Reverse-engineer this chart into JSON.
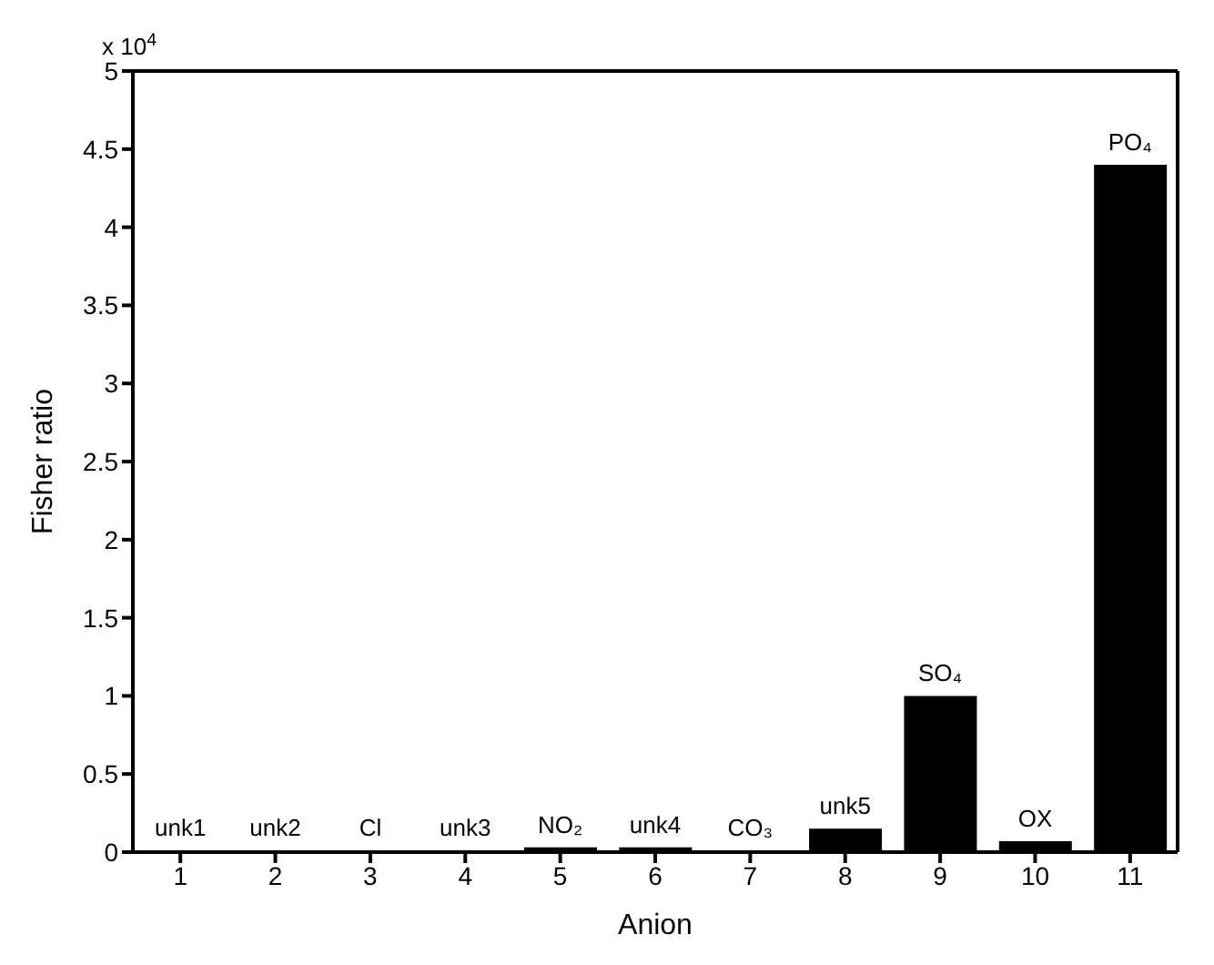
{
  "chart_data": {
    "type": "bar",
    "xlabel": "Anion",
    "ylabel": "Fisher ratio",
    "categories": [
      "1",
      "2",
      "3",
      "4",
      "5",
      "6",
      "7",
      "8",
      "9",
      "10",
      "11"
    ],
    "values": [
      0.01,
      0.01,
      0.01,
      0.01,
      0.03,
      0.03,
      0.01,
      0.15,
      1.0,
      0.07,
      4.4
    ],
    "color": "#000000",
    "ylim": [
      0,
      5
    ],
    "yticks": [
      0,
      0.5,
      1,
      1.5,
      2,
      2.5,
      3,
      3.5,
      4,
      4.5,
      5
    ],
    "grid": false,
    "legend": false,
    "annotations": [
      "x 10$^{4}$",
      {
        "text": "unk1",
        "x": "1",
        "y": 0.01
      },
      {
        "text": "unk2",
        "x": "2",
        "y": 0.01
      },
      {
        "text": "Cl",
        "x": "3",
        "y": 0.01
      },
      {
        "text": "unk3",
        "x": "4",
        "y": 0.01
      },
      {
        "text": "NO₂",
        "x": "5",
        "y": 0.03
      },
      {
        "text": "unk4",
        "x": "6",
        "y": 0.03
      },
      {
        "text": "CO₃",
        "x": "7",
        "y": 0.01
      },
      {
        "text": "unk5",
        "x": "8",
        "y": 0.15
      },
      {
        "text": "SO₄",
        "x": "9",
        "y": 1.0
      },
      {
        "text": "OX",
        "x": "10",
        "y": 0.07
      },
      {
        "text": "PO₄",
        "x": "11",
        "y": 4.4
      }
    ]
  }
}
